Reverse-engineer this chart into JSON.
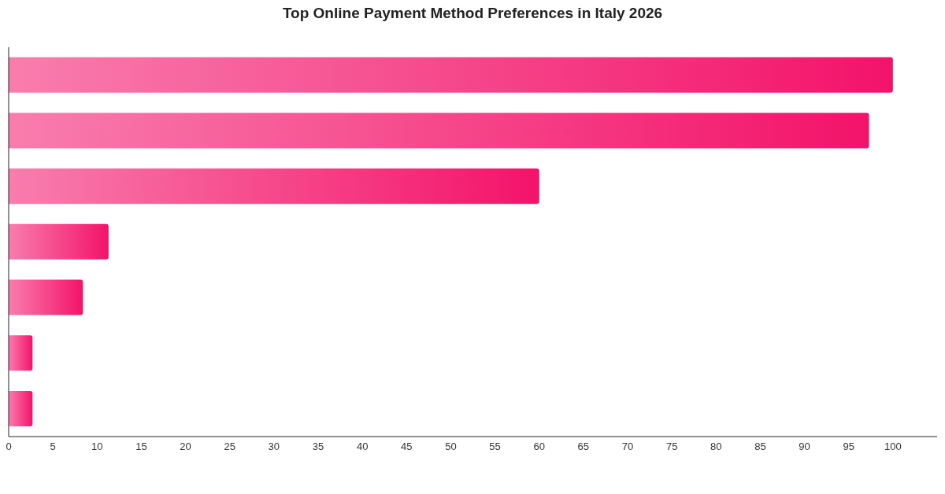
{
  "chart_data": {
    "type": "bar",
    "title": "Top Online Payment Method Preferences in Italy 2026",
    "orientation": "horizontal",
    "categories": [
      null,
      null,
      null,
      null,
      null,
      null,
      null
    ],
    "values": [
      100,
      97.3,
      60,
      11.3,
      8.4,
      2.7,
      2.7
    ],
    "color": "#f3136a",
    "xlim": [
      0,
      105
    ],
    "xticks": [
      0,
      5,
      10,
      15,
      20,
      25,
      30,
      35,
      40,
      45,
      50,
      55,
      60,
      65,
      70,
      75,
      80,
      85,
      90,
      95,
      100
    ],
    "grid": false,
    "legend": false
  }
}
